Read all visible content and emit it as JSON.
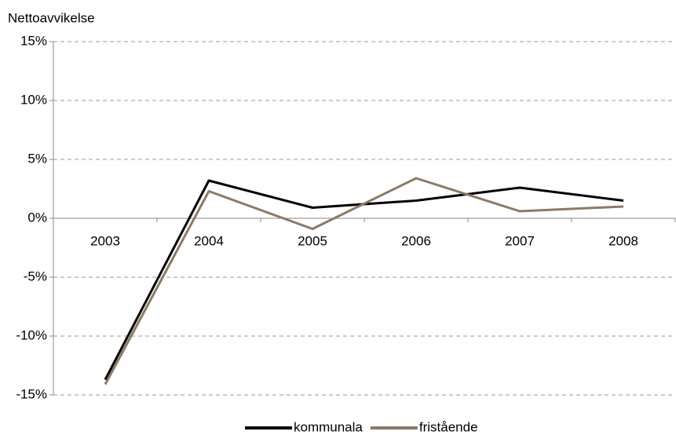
{
  "chart_data": {
    "type": "line",
    "y_axis_title": "Nettoavvikelse",
    "categories": [
      "2003",
      "2004",
      "2005",
      "2006",
      "2007",
      "2008"
    ],
    "series": [
      {
        "name": "kommunala",
        "color": "#000000",
        "values": [
          -13.7,
          3.2,
          0.9,
          1.5,
          2.6,
          1.5
        ]
      },
      {
        "name": "fristående",
        "color": "#8c7a62",
        "values": [
          -14.1,
          2.3,
          -0.9,
          3.4,
          0.6,
          1.0
        ]
      }
    ],
    "ylim": [
      -15,
      15
    ],
    "yticks": [
      {
        "value": -15,
        "label": "-15%"
      },
      {
        "value": -10,
        "label": "-10%"
      },
      {
        "value": -5,
        "label": "-5%"
      },
      {
        "value": 0,
        "label": "0%"
      },
      {
        "value": 5,
        "label": "5%"
      },
      {
        "value": 10,
        "label": "10%"
      },
      {
        "value": 15,
        "label": "15%"
      }
    ],
    "grid": true
  }
}
